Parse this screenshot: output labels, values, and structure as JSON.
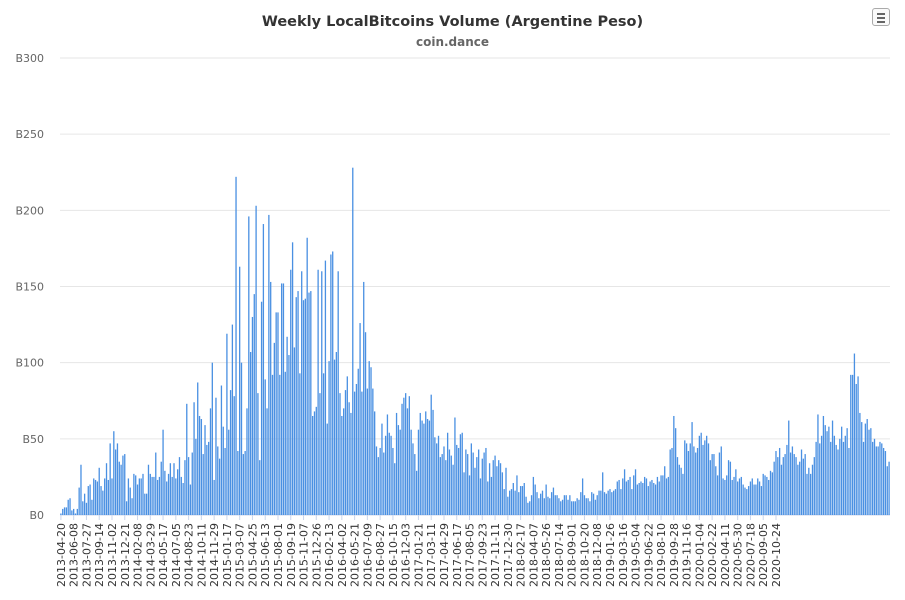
{
  "chart_data": {
    "type": "bar",
    "title": "Weekly LocalBitcoins Volume (Argentine Peso)",
    "subtitle": "coin.dance",
    "xlabel": "",
    "ylabel": "",
    "ylim": [
      0,
      300
    ],
    "y_ticks": [
      "B0",
      "B50",
      "B100",
      "B150",
      "B200",
      "B250",
      "B300"
    ],
    "y_tick_values": [
      0,
      50,
      100,
      150,
      200,
      250,
      300
    ],
    "x_tick_labels": [
      "2013-04-20",
      "2013-06-08",
      "2013-07-27",
      "2013-09-14",
      "2013-11-02",
      "2013-12-21",
      "2014-02-08",
      "2014-03-29",
      "2014-05-17",
      "2014-07-05",
      "2014-08-23",
      "2014-10-11",
      "2014-11-29",
      "2015-01-17",
      "2015-03-07",
      "2015-04-25",
      "2015-06-13",
      "2015-08-01",
      "2015-09-19",
      "2015-11-07",
      "2015-12-26",
      "2016-02-13",
      "2016-04-02",
      "2016-05-21",
      "2016-07-09",
      "2016-08-27",
      "2016-10-15",
      "2016-12-03",
      "2017-01-21",
      "2017-03-11",
      "2017-04-29",
      "2017-06-17",
      "2017-08-05",
      "2017-09-23",
      "2017-11-11",
      "2017-12-30",
      "2018-02-17",
      "2018-04-07",
      "2018-05-26",
      "2018-07-14",
      "2018-09-01",
      "2018-10-20",
      "2018-12-08",
      "2019-01-26",
      "2019-03-16",
      "2019-05-04",
      "2019-06-22",
      "2019-08-10",
      "2019-09-28",
      "2019-11-16",
      "2020-01-04",
      "2020-02-22",
      "2020-04-11",
      "2020-05-30",
      "2020-07-18",
      "2020-09-05",
      "2020-10-24"
    ],
    "x_tick_every": 7,
    "series": [
      {
        "color": "#4a90e2",
        "values": [
          1,
          4,
          5,
          5,
          10,
          11,
          3,
          4,
          1,
          4,
          18,
          33,
          9,
          14,
          8,
          19,
          20,
          10,
          24,
          23,
          22,
          31,
          19,
          16,
          24,
          34,
          23,
          47,
          24,
          55,
          43,
          47,
          35,
          33,
          39,
          40,
          9,
          24,
          18,
          11,
          27,
          26,
          20,
          24,
          24,
          27,
          14,
          14,
          33,
          27,
          25,
          25,
          41,
          23,
          25,
          35,
          56,
          29,
          22,
          27,
          34,
          25,
          34,
          24,
          30,
          38,
          25,
          21,
          36,
          73,
          38,
          20,
          41,
          74,
          50,
          87,
          65,
          63,
          40,
          59,
          46,
          48,
          70,
          100,
          23,
          77,
          45,
          37,
          85,
          58,
          44,
          119,
          56,
          82,
          125,
          78,
          222,
          42,
          163,
          100,
          40,
          42,
          70,
          196,
          107,
          130,
          145,
          203,
          80,
          36,
          140,
          191,
          89,
          70,
          197,
          153,
          92,
          113,
          133,
          133,
          92,
          152,
          152,
          94,
          117,
          105,
          161,
          179,
          110,
          143,
          147,
          93,
          160,
          141,
          142,
          182,
          146,
          147,
          65,
          68,
          71,
          161,
          80,
          160,
          93,
          167,
          60,
          101,
          171,
          173,
          102,
          107,
          160,
          80,
          65,
          70,
          82,
          91,
          74,
          67,
          228,
          81,
          86,
          96,
          126,
          81,
          153,
          120,
          83,
          101,
          97,
          83,
          68,
          45,
          38,
          44,
          60,
          41,
          52,
          66,
          54,
          52,
          44,
          34,
          67,
          59,
          56,
          73,
          77,
          80,
          70,
          78,
          56,
          47,
          40,
          29,
          56,
          67,
          62,
          60,
          68,
          63,
          62,
          79,
          69,
          51,
          47,
          52,
          38,
          40,
          45,
          36,
          54,
          43,
          39,
          33,
          64,
          46,
          44,
          53,
          54,
          28,
          43,
          40,
          26,
          47,
          41,
          31,
          38,
          43,
          24,
          37,
          41,
          44,
          22,
          34,
          25,
          36,
          39,
          32,
          36,
          34,
          28,
          17,
          31,
          12,
          16,
          17,
          21,
          16,
          26,
          15,
          19,
          19,
          21,
          12,
          8,
          9,
          13,
          25,
          20,
          15,
          11,
          14,
          16,
          11,
          20,
          12,
          11,
          15,
          18,
          13,
          13,
          11,
          9,
          10,
          13,
          13,
          10,
          13,
          9,
          9,
          9,
          11,
          10,
          15,
          24,
          13,
          11,
          11,
          9,
          15,
          14,
          10,
          13,
          16,
          16,
          28,
          15,
          14,
          16,
          17,
          15,
          16,
          17,
          22,
          23,
          17,
          24,
          30,
          22,
          23,
          25,
          17,
          26,
          30,
          20,
          21,
          22,
          21,
          25,
          24,
          19,
          22,
          23,
          21,
          20,
          25,
          22,
          26,
          26,
          32,
          24,
          25,
          43,
          44,
          65,
          57,
          38,
          33,
          31,
          27,
          49,
          47,
          42,
          47,
          61,
          45,
          41,
          44,
          52,
          54,
          46,
          49,
          52,
          47,
          36,
          40,
          40,
          32,
          26,
          41,
          45,
          24,
          23,
          26,
          36,
          35,
          23,
          25,
          30,
          22,
          24,
          25,
          20,
          18,
          17,
          19,
          22,
          24,
          20,
          20,
          24,
          22,
          19,
          27,
          26,
          25,
          23,
          29,
          28,
          35,
          42,
          38,
          44,
          33,
          38,
          40,
          46,
          62,
          41,
          45,
          40,
          38,
          33,
          35,
          43,
          37,
          40,
          27,
          31,
          27,
          33,
          38,
          48,
          66,
          47,
          52,
          65,
          59,
          55,
          58,
          48,
          62,
          52,
          46,
          43,
          50,
          58,
          48,
          52,
          57,
          44,
          92,
          92,
          106,
          86,
          91,
          67,
          61,
          48,
          60,
          63,
          56,
          57,
          48,
          50,
          45,
          45,
          48,
          47,
          44,
          42,
          32,
          35
        ]
      }
    ],
    "grid": true,
    "legend": "none"
  },
  "ui": {
    "menu_icon": "hamburger-menu-icon"
  }
}
